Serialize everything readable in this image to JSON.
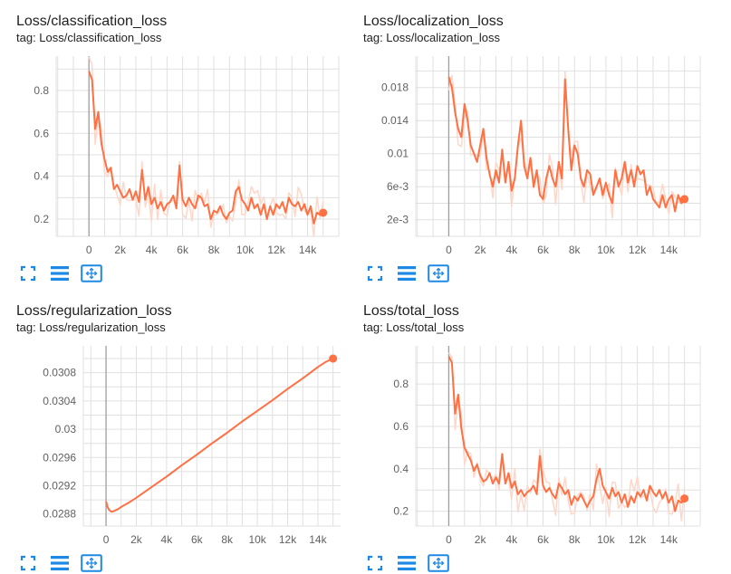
{
  "panels": [
    {
      "title": "Loss/classification_loss",
      "tag": "tag: Loss/classification_loss"
    },
    {
      "title": "Loss/localization_loss",
      "tag": "tag: Loss/localization_loss"
    },
    {
      "title": "Loss/regularization_loss",
      "tag": "tag: Loss/regularization_loss"
    },
    {
      "title": "Loss/total_loss",
      "tag": "tag: Loss/total_loss"
    }
  ],
  "toolbar": {
    "icons": [
      "fullscreen-icon",
      "toggle-log-scale-icon",
      "fit-domain-icon"
    ]
  },
  "colors": {
    "series": "#ff7043",
    "series_raw": "#ffd6c8",
    "grid": "#e0e0e0",
    "zero_line": "#9e9e9e",
    "icon": "#1e88e5"
  },
  "chart_data": [
    {
      "type": "line",
      "title": "Loss/classification_loss",
      "x_ticks": [
        "0",
        "2k",
        "4k",
        "6k",
        "8k",
        "10k",
        "12k",
        "14k"
      ],
      "x_tick_values": [
        0,
        2000,
        4000,
        6000,
        8000,
        10000,
        12000,
        14000
      ],
      "y_ticks": [
        "0.2",
        "0.4",
        "0.6",
        "0.8"
      ],
      "y_tick_values": [
        0.2,
        0.4,
        0.6,
        0.8
      ],
      "xlim": [
        -2100,
        16000
      ],
      "ylim": [
        0.12,
        0.96
      ],
      "grid": true,
      "series": [
        {
          "x": [
            0,
            200,
            400,
            600,
            800,
            1000,
            1200,
            1400,
            1600,
            1800,
            2000,
            2200,
            2400,
            2600,
            2800,
            3000,
            3200,
            3400,
            3600,
            3800,
            4000,
            4200,
            4400,
            4600,
            4800,
            5000,
            5200,
            5400,
            5600,
            5800,
            6000,
            6200,
            6400,
            6600,
            6800,
            7000,
            7200,
            7400,
            7600,
            7800,
            8000,
            8200,
            8400,
            8600,
            8800,
            9000,
            9200,
            9400,
            9600,
            9800,
            10000,
            10200,
            10400,
            10600,
            10800,
            11000,
            11200,
            11400,
            11600,
            11800,
            12000,
            12200,
            12400,
            12600,
            12800,
            13000,
            13200,
            13400,
            13600,
            13800,
            14000,
            14200,
            14400,
            14600,
            14800,
            15000
          ],
          "y": [
            0.89,
            0.85,
            0.62,
            0.7,
            0.55,
            0.48,
            0.42,
            0.44,
            0.34,
            0.36,
            0.33,
            0.3,
            0.31,
            0.34,
            0.29,
            0.33,
            0.28,
            0.43,
            0.29,
            0.35,
            0.27,
            0.3,
            0.25,
            0.28,
            0.24,
            0.27,
            0.28,
            0.31,
            0.25,
            0.45,
            0.29,
            0.26,
            0.3,
            0.27,
            0.25,
            0.31,
            0.3,
            0.26,
            0.27,
            0.2,
            0.24,
            0.23,
            0.26,
            0.22,
            0.2,
            0.23,
            0.24,
            0.33,
            0.35,
            0.29,
            0.27,
            0.24,
            0.3,
            0.25,
            0.27,
            0.22,
            0.27,
            0.2,
            0.26,
            0.22,
            0.27,
            0.25,
            0.28,
            0.23,
            0.3,
            0.27,
            0.26,
            0.28,
            0.24,
            0.27,
            0.22,
            0.26,
            0.18,
            0.23,
            0.22,
            0.23
          ]
        }
      ]
    },
    {
      "type": "line",
      "title": "Loss/localization_loss",
      "x_ticks": [
        "0",
        "2k",
        "4k",
        "6k",
        "8k",
        "10k",
        "12k",
        "14k"
      ],
      "x_tick_values": [
        0,
        2000,
        4000,
        6000,
        8000,
        10000,
        12000,
        14000
      ],
      "y_ticks": [
        "2e-3",
        "6e-3",
        "0.01",
        "0.014",
        "0.018"
      ],
      "y_tick_values": [
        0.002,
        0.006,
        0.01,
        0.014,
        0.018
      ],
      "xlim": [
        -2100,
        16000
      ],
      "ylim": [
        0.0,
        0.0218
      ],
      "grid": true,
      "series": [
        {
          "x": [
            0,
            200,
            400,
            600,
            800,
            1000,
            1200,
            1400,
            1600,
            1800,
            2000,
            2200,
            2400,
            2600,
            2800,
            3000,
            3200,
            3400,
            3600,
            3800,
            4000,
            4200,
            4400,
            4600,
            4800,
            5000,
            5200,
            5400,
            5600,
            5800,
            6000,
            6200,
            6400,
            6600,
            6800,
            7000,
            7200,
            7400,
            7600,
            7800,
            8000,
            8200,
            8400,
            8600,
            8800,
            9000,
            9200,
            9400,
            9600,
            9800,
            10000,
            10200,
            10400,
            10600,
            10800,
            11000,
            11200,
            11400,
            11600,
            11800,
            12000,
            12200,
            12400,
            12600,
            12800,
            13000,
            13200,
            13400,
            13600,
            13800,
            14000,
            14200,
            14400,
            14600,
            14800,
            15000
          ],
          "y": [
            0.0193,
            0.018,
            0.015,
            0.013,
            0.012,
            0.016,
            0.014,
            0.011,
            0.01,
            0.009,
            0.011,
            0.013,
            0.0095,
            0.0075,
            0.006,
            0.008,
            0.0065,
            0.0105,
            0.0065,
            0.009,
            0.0055,
            0.007,
            0.011,
            0.014,
            0.0085,
            0.007,
            0.0095,
            0.006,
            0.008,
            0.005,
            0.0045,
            0.007,
            0.0085,
            0.007,
            0.006,
            0.009,
            0.007,
            0.019,
            0.013,
            0.008,
            0.011,
            0.01,
            0.007,
            0.006,
            0.008,
            0.0075,
            0.005,
            0.006,
            0.007,
            0.005,
            0.0065,
            0.005,
            0.004,
            0.008,
            0.006,
            0.007,
            0.009,
            0.0065,
            0.008,
            0.006,
            0.0085,
            0.0075,
            0.008,
            0.005,
            0.006,
            0.0045,
            0.004,
            0.0035,
            0.005,
            0.0035,
            0.0045,
            0.005,
            0.003,
            0.005,
            0.004,
            0.0045
          ]
        }
      ]
    },
    {
      "type": "line",
      "title": "Loss/regularization_loss",
      "x_ticks": [
        "0",
        "2k",
        "4k",
        "6k",
        "8k",
        "10k",
        "12k",
        "14k"
      ],
      "x_tick_values": [
        0,
        2000,
        4000,
        6000,
        8000,
        10000,
        12000,
        14000
      ],
      "y_ticks": [
        "0.0288",
        "0.0292",
        "0.0296",
        "0.03",
        "0.0304",
        "0.0308"
      ],
      "y_tick_values": [
        0.0288,
        0.0292,
        0.0296,
        0.03,
        0.0304,
        0.0308
      ],
      "xlim": [
        -1500,
        15500
      ],
      "ylim": [
        0.02863,
        0.03118
      ],
      "grid": true,
      "series": [
        {
          "x": [
            0,
            100,
            200,
            300,
            400,
            500,
            600,
            800,
            1000,
            1500,
            2000,
            3000,
            4000,
            5000,
            6000,
            7000,
            8000,
            9000,
            10000,
            11000,
            12000,
            13000,
            14000,
            14500,
            15000
          ],
          "y": [
            0.02898,
            0.0289,
            0.02886,
            0.02884,
            0.02883,
            0.02884,
            0.02885,
            0.02887,
            0.0289,
            0.02896,
            0.02903,
            0.02918,
            0.02933,
            0.02949,
            0.02964,
            0.0298,
            0.02995,
            0.03011,
            0.03026,
            0.03041,
            0.03057,
            0.03072,
            0.03088,
            0.03095,
            0.031
          ]
        }
      ]
    },
    {
      "type": "line",
      "title": "Loss/total_loss",
      "x_ticks": [
        "0",
        "2k",
        "4k",
        "6k",
        "8k",
        "10k",
        "12k",
        "14k"
      ],
      "x_tick_values": [
        0,
        2000,
        4000,
        6000,
        8000,
        10000,
        12000,
        14000
      ],
      "y_ticks": [
        "0.2",
        "0.4",
        "0.6",
        "0.8"
      ],
      "y_tick_values": [
        0.2,
        0.4,
        0.6,
        0.8
      ],
      "xlim": [
        -2100,
        16000
      ],
      "ylim": [
        0.13,
        0.98
      ],
      "grid": true,
      "series": [
        {
          "x": [
            0,
            200,
            400,
            600,
            800,
            1000,
            1200,
            1400,
            1600,
            1800,
            2000,
            2200,
            2400,
            2600,
            2800,
            3000,
            3200,
            3400,
            3600,
            3800,
            4000,
            4200,
            4400,
            4600,
            4800,
            5000,
            5200,
            5400,
            5600,
            5800,
            6000,
            6200,
            6400,
            6600,
            6800,
            7000,
            7200,
            7400,
            7600,
            7800,
            8000,
            8200,
            8400,
            8600,
            8800,
            9000,
            9200,
            9400,
            9600,
            9800,
            10000,
            10200,
            10400,
            10600,
            10800,
            11000,
            11200,
            11400,
            11600,
            11800,
            12000,
            12200,
            12400,
            12600,
            12800,
            13000,
            13200,
            13400,
            13600,
            13800,
            14000,
            14200,
            14400,
            14600,
            14800,
            15000
          ],
          "y": [
            0.93,
            0.9,
            0.66,
            0.75,
            0.59,
            0.5,
            0.47,
            0.44,
            0.39,
            0.42,
            0.37,
            0.34,
            0.35,
            0.38,
            0.33,
            0.36,
            0.33,
            0.47,
            0.33,
            0.38,
            0.31,
            0.34,
            0.28,
            0.3,
            0.27,
            0.29,
            0.3,
            0.32,
            0.28,
            0.46,
            0.32,
            0.29,
            0.31,
            0.28,
            0.26,
            0.33,
            0.31,
            0.28,
            0.3,
            0.23,
            0.27,
            0.25,
            0.28,
            0.25,
            0.22,
            0.25,
            0.27,
            0.35,
            0.4,
            0.32,
            0.29,
            0.26,
            0.31,
            0.27,
            0.29,
            0.24,
            0.28,
            0.22,
            0.27,
            0.24,
            0.29,
            0.27,
            0.3,
            0.25,
            0.32,
            0.29,
            0.27,
            0.3,
            0.26,
            0.29,
            0.24,
            0.27,
            0.2,
            0.25,
            0.24,
            0.26
          ]
        }
      ]
    }
  ]
}
